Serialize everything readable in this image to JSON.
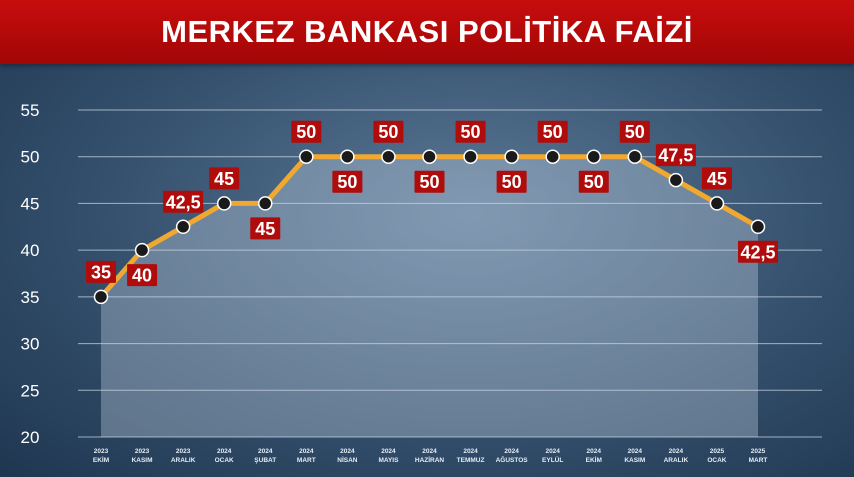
{
  "title": "MERKEZ BANKASI POLİTİKA FAİZİ",
  "colors": {
    "title_bg": "#b80a0a",
    "line": "#f0a830",
    "marker": "#1a1a1a",
    "label_bg": "#b00c0c",
    "label_text": "#ffffff",
    "grid": "#c8d6e4",
    "axis_text": "#ffffff"
  },
  "chart_data": {
    "type": "line",
    "title": "MERKEZ BANKASI POLİTİKA FAİZİ",
    "xlabel": "",
    "ylabel": "",
    "ylim": [
      20,
      55
    ],
    "yticks": [
      20,
      25,
      30,
      35,
      40,
      45,
      50,
      55
    ],
    "grid": true,
    "categories": [
      [
        "2023",
        "EKİM"
      ],
      [
        "2023",
        "KASIM"
      ],
      [
        "2023",
        "ARALIK"
      ],
      [
        "2024",
        "OCAK"
      ],
      [
        "2024",
        "ŞUBAT"
      ],
      [
        "2024",
        "MART"
      ],
      [
        "2024",
        "NİSAN"
      ],
      [
        "2024",
        "MAYIS"
      ],
      [
        "2024",
        "HAZİRAN"
      ],
      [
        "2024",
        "TEMMUZ"
      ],
      [
        "2024",
        "AĞUSTOS"
      ],
      [
        "2024",
        "EYLÜL"
      ],
      [
        "2024",
        "EKİM"
      ],
      [
        "2024",
        "KASIM"
      ],
      [
        "2024",
        "ARALIK"
      ],
      [
        "2025",
        "OCAK"
      ],
      [
        "2025",
        "MART"
      ]
    ],
    "values": [
      35,
      40,
      42.5,
      45,
      45,
      50,
      50,
      50,
      50,
      50,
      50,
      50,
      50,
      50,
      47.5,
      45,
      42.5
    ],
    "data_labels": [
      "35",
      "40",
      "42,5",
      "45",
      "45",
      "50",
      "50",
      "50",
      "50",
      "50",
      "50",
      "50",
      "50",
      "50",
      "47,5",
      "45",
      "42,5"
    ],
    "label_positions": [
      "above",
      "below",
      "above",
      "above",
      "below",
      "above",
      "below",
      "above",
      "below",
      "above",
      "below",
      "above",
      "below",
      "above",
      "above",
      "above",
      "below"
    ]
  }
}
